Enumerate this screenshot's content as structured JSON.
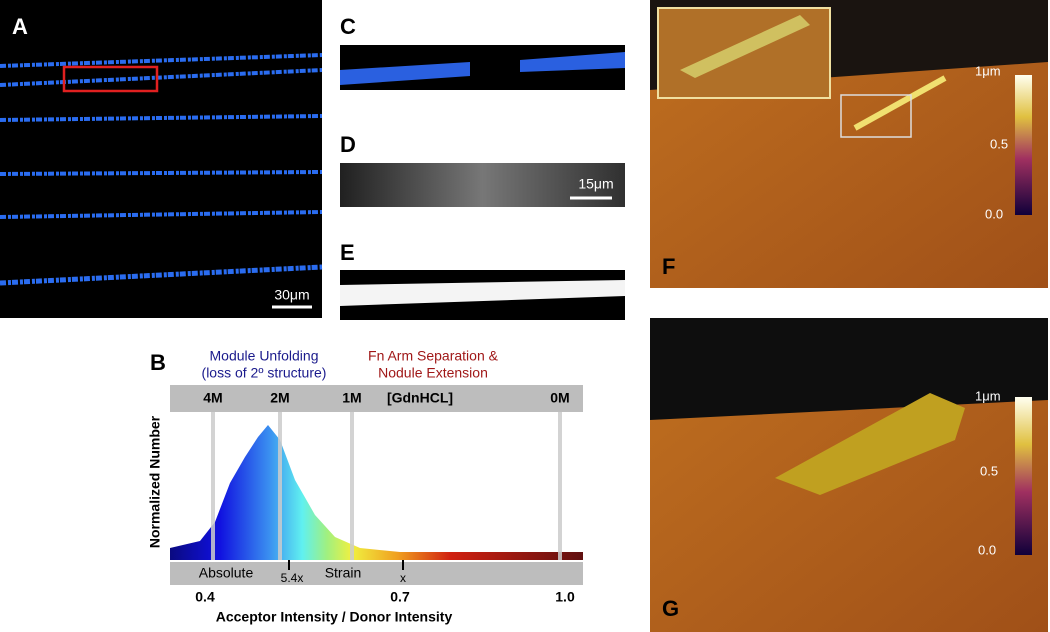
{
  "panels": {
    "a": {
      "label": "A",
      "scale_bar": "30μm"
    },
    "b": {
      "label": "B",
      "annotation_left": [
        "Module Unfolding",
        "(loss of 2º structure)"
      ],
      "annotation_right": [
        "Fn Arm Separation &",
        "Nodule Extension"
      ],
      "concentrations": [
        "4M",
        "2M",
        "1M",
        "[GdnHCL]",
        "0M"
      ],
      "strain_labels": [
        "Absolute",
        "5.4x",
        "Strain",
        "x"
      ],
      "x_ticks": [
        "0.4",
        "0.7",
        "1.0"
      ],
      "x_label": "Acceptor Intensity / Donor Intensity",
      "y_label": "Normalized Number"
    },
    "c": {
      "label": "C"
    },
    "d": {
      "label": "D",
      "scale_bar": "15μm"
    },
    "e": {
      "label": "E"
    },
    "f": {
      "label": "F",
      "colorbar": [
        "1μm",
        "0.5",
        "0.0"
      ]
    },
    "g": {
      "label": "G",
      "colorbar": [
        "1μm",
        "0.5",
        "0.0"
      ]
    }
  }
}
